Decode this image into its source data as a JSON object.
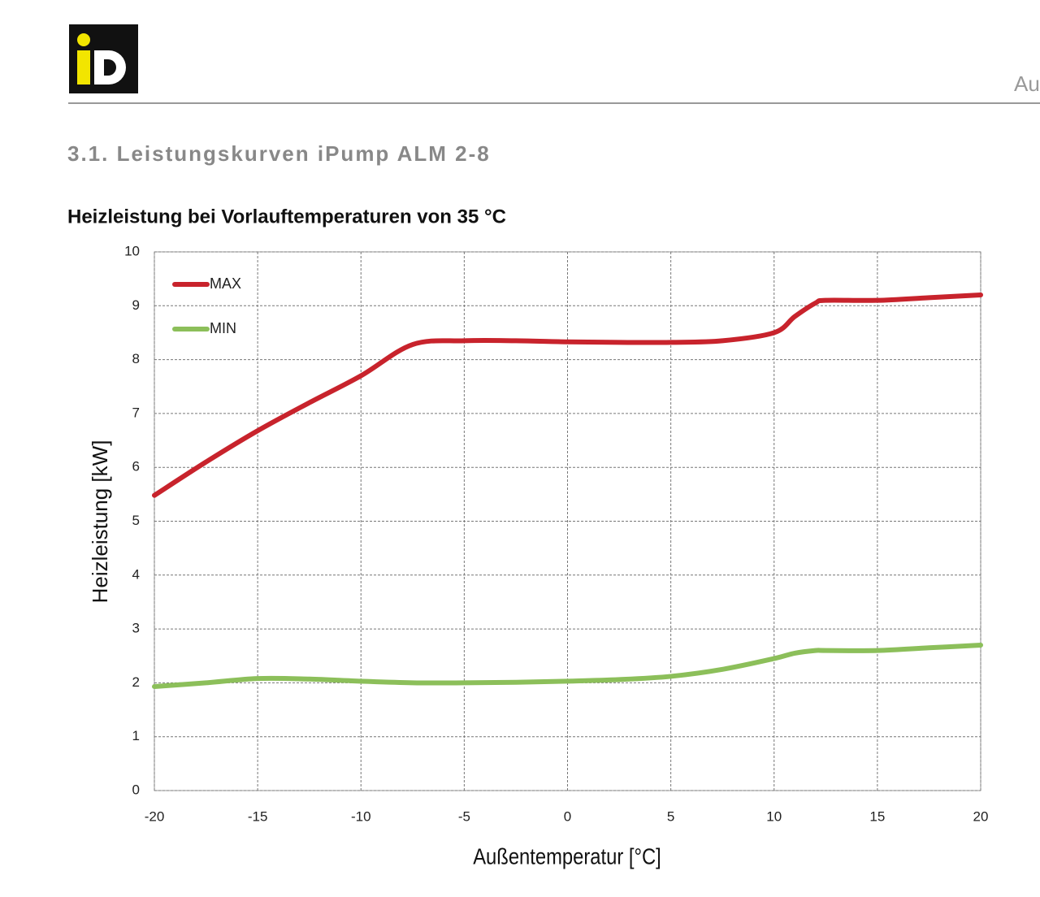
{
  "header": {
    "cut_text": "Au"
  },
  "section_title": "3.1. Leistungskurven iPump ALM 2-8",
  "chart_data": {
    "type": "line",
    "title": "Heizleistung bei Vorlauftemperaturen von 35 °C",
    "x_label": "Außentemperatur [°C]",
    "y_label": "Heizleistung [kW]",
    "x": [
      -20,
      -17.5,
      -15,
      -12.5,
      -10,
      -7.5,
      -5,
      -2.5,
      0,
      2.5,
      5,
      7.5,
      10,
      11,
      12,
      12.5,
      15,
      17.5,
      20
    ],
    "series": [
      {
        "name": "MAX",
        "color": "#c8232c",
        "values": [
          5.48,
          6.1,
          6.68,
          7.2,
          7.7,
          8.28,
          8.35,
          8.35,
          8.33,
          8.32,
          8.32,
          8.35,
          8.5,
          8.8,
          9.05,
          9.1,
          9.1,
          9.15,
          9.2
        ]
      },
      {
        "name": "MIN",
        "color": "#8cbf5a",
        "values": [
          1.93,
          2.0,
          2.08,
          2.07,
          2.03,
          2.0,
          2.0,
          2.01,
          2.03,
          2.06,
          2.12,
          2.25,
          2.45,
          2.55,
          2.6,
          2.6,
          2.6,
          2.65,
          2.7
        ]
      }
    ],
    "xlim": [
      -20,
      20
    ],
    "xticks": [
      -20,
      -15,
      -10,
      -5,
      0,
      5,
      10,
      15,
      20
    ],
    "ylim": [
      0,
      10
    ],
    "yticks": [
      0,
      1,
      2,
      3,
      4,
      5,
      6,
      7,
      8,
      9,
      10
    ],
    "grid": true,
    "legend": "top-left"
  }
}
